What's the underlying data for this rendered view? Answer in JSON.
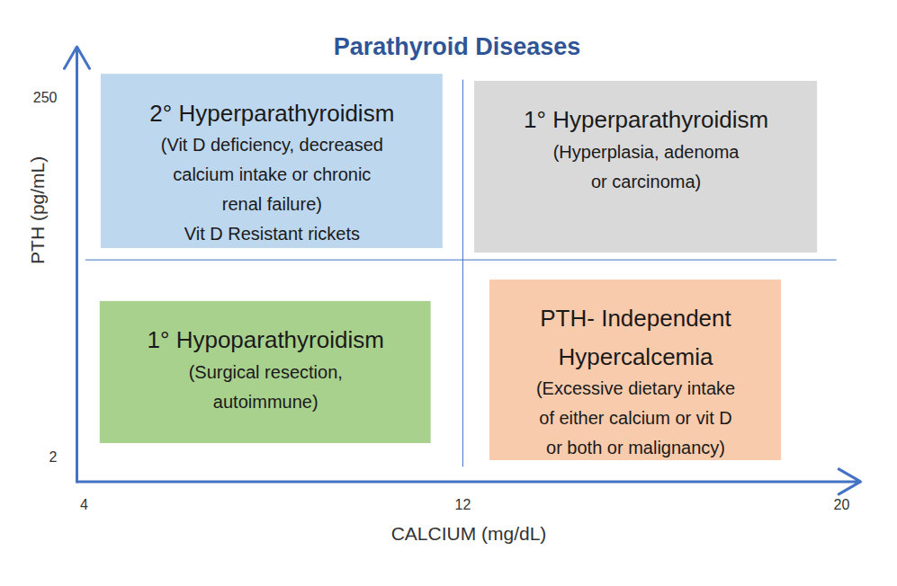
{
  "chart_data": {
    "type": "quadrant",
    "title": "Parathyroid Diseases",
    "x_label": "CALCIUM (mg/dL)",
    "y_label": "PTH (pg/mL)",
    "xlim": [
      3.85,
      20.4
    ],
    "xticks": [
      4,
      12,
      20
    ],
    "ylim": [
      -15,
      285
    ],
    "yticks": [
      2,
      250
    ],
    "x_divider": {
      "value": 12,
      "y_range": [
        -5,
        262
      ]
    },
    "y_divider": {
      "value": 138,
      "x_range": [
        4.04,
        19.9
      ]
    },
    "quadrants": [
      {
        "heading": [
          "2° Hyperparathyroidism"
        ],
        "details": [
          "(Vit D deficiency, decreased",
          "calcium intake or chronic",
          "renal failure)",
          "Vit D Resistant rickets"
        ],
        "color": "#bdd7ee",
        "x_range": [
          4.36,
          11.58
        ],
        "y_range": [
          145.8,
          266
        ]
      },
      {
        "heading": [
          "1° Hyperparathyroidism"
        ],
        "details": [
          "(Hyperplasia, adenoma",
          "or carcinoma)"
        ],
        "color": "#d9d9d9",
        "x_range": [
          12.25,
          19.49
        ],
        "y_range": [
          142.7,
          261.2
        ]
      },
      {
        "heading": [
          "1° Hypoparathyroidism"
        ],
        "details": [
          "(Surgical resection,",
          "autoimmune)"
        ],
        "color": "#a9d18e",
        "x_range": [
          4.34,
          11.33
        ],
        "y_range": [
          11.3,
          109.3
        ]
      },
      {
        "heading": [
          "PTH- Independent",
          "Hypercalcemia"
        ],
        "details": [
          "(Excessive dietary intake",
          "of either calcium or vit D",
          "or both or malignancy)"
        ],
        "color": "#f8cbad",
        "x_range": [
          12.57,
          18.73
        ],
        "y_range": [
          -0.5,
          124.1
        ]
      }
    ]
  }
}
